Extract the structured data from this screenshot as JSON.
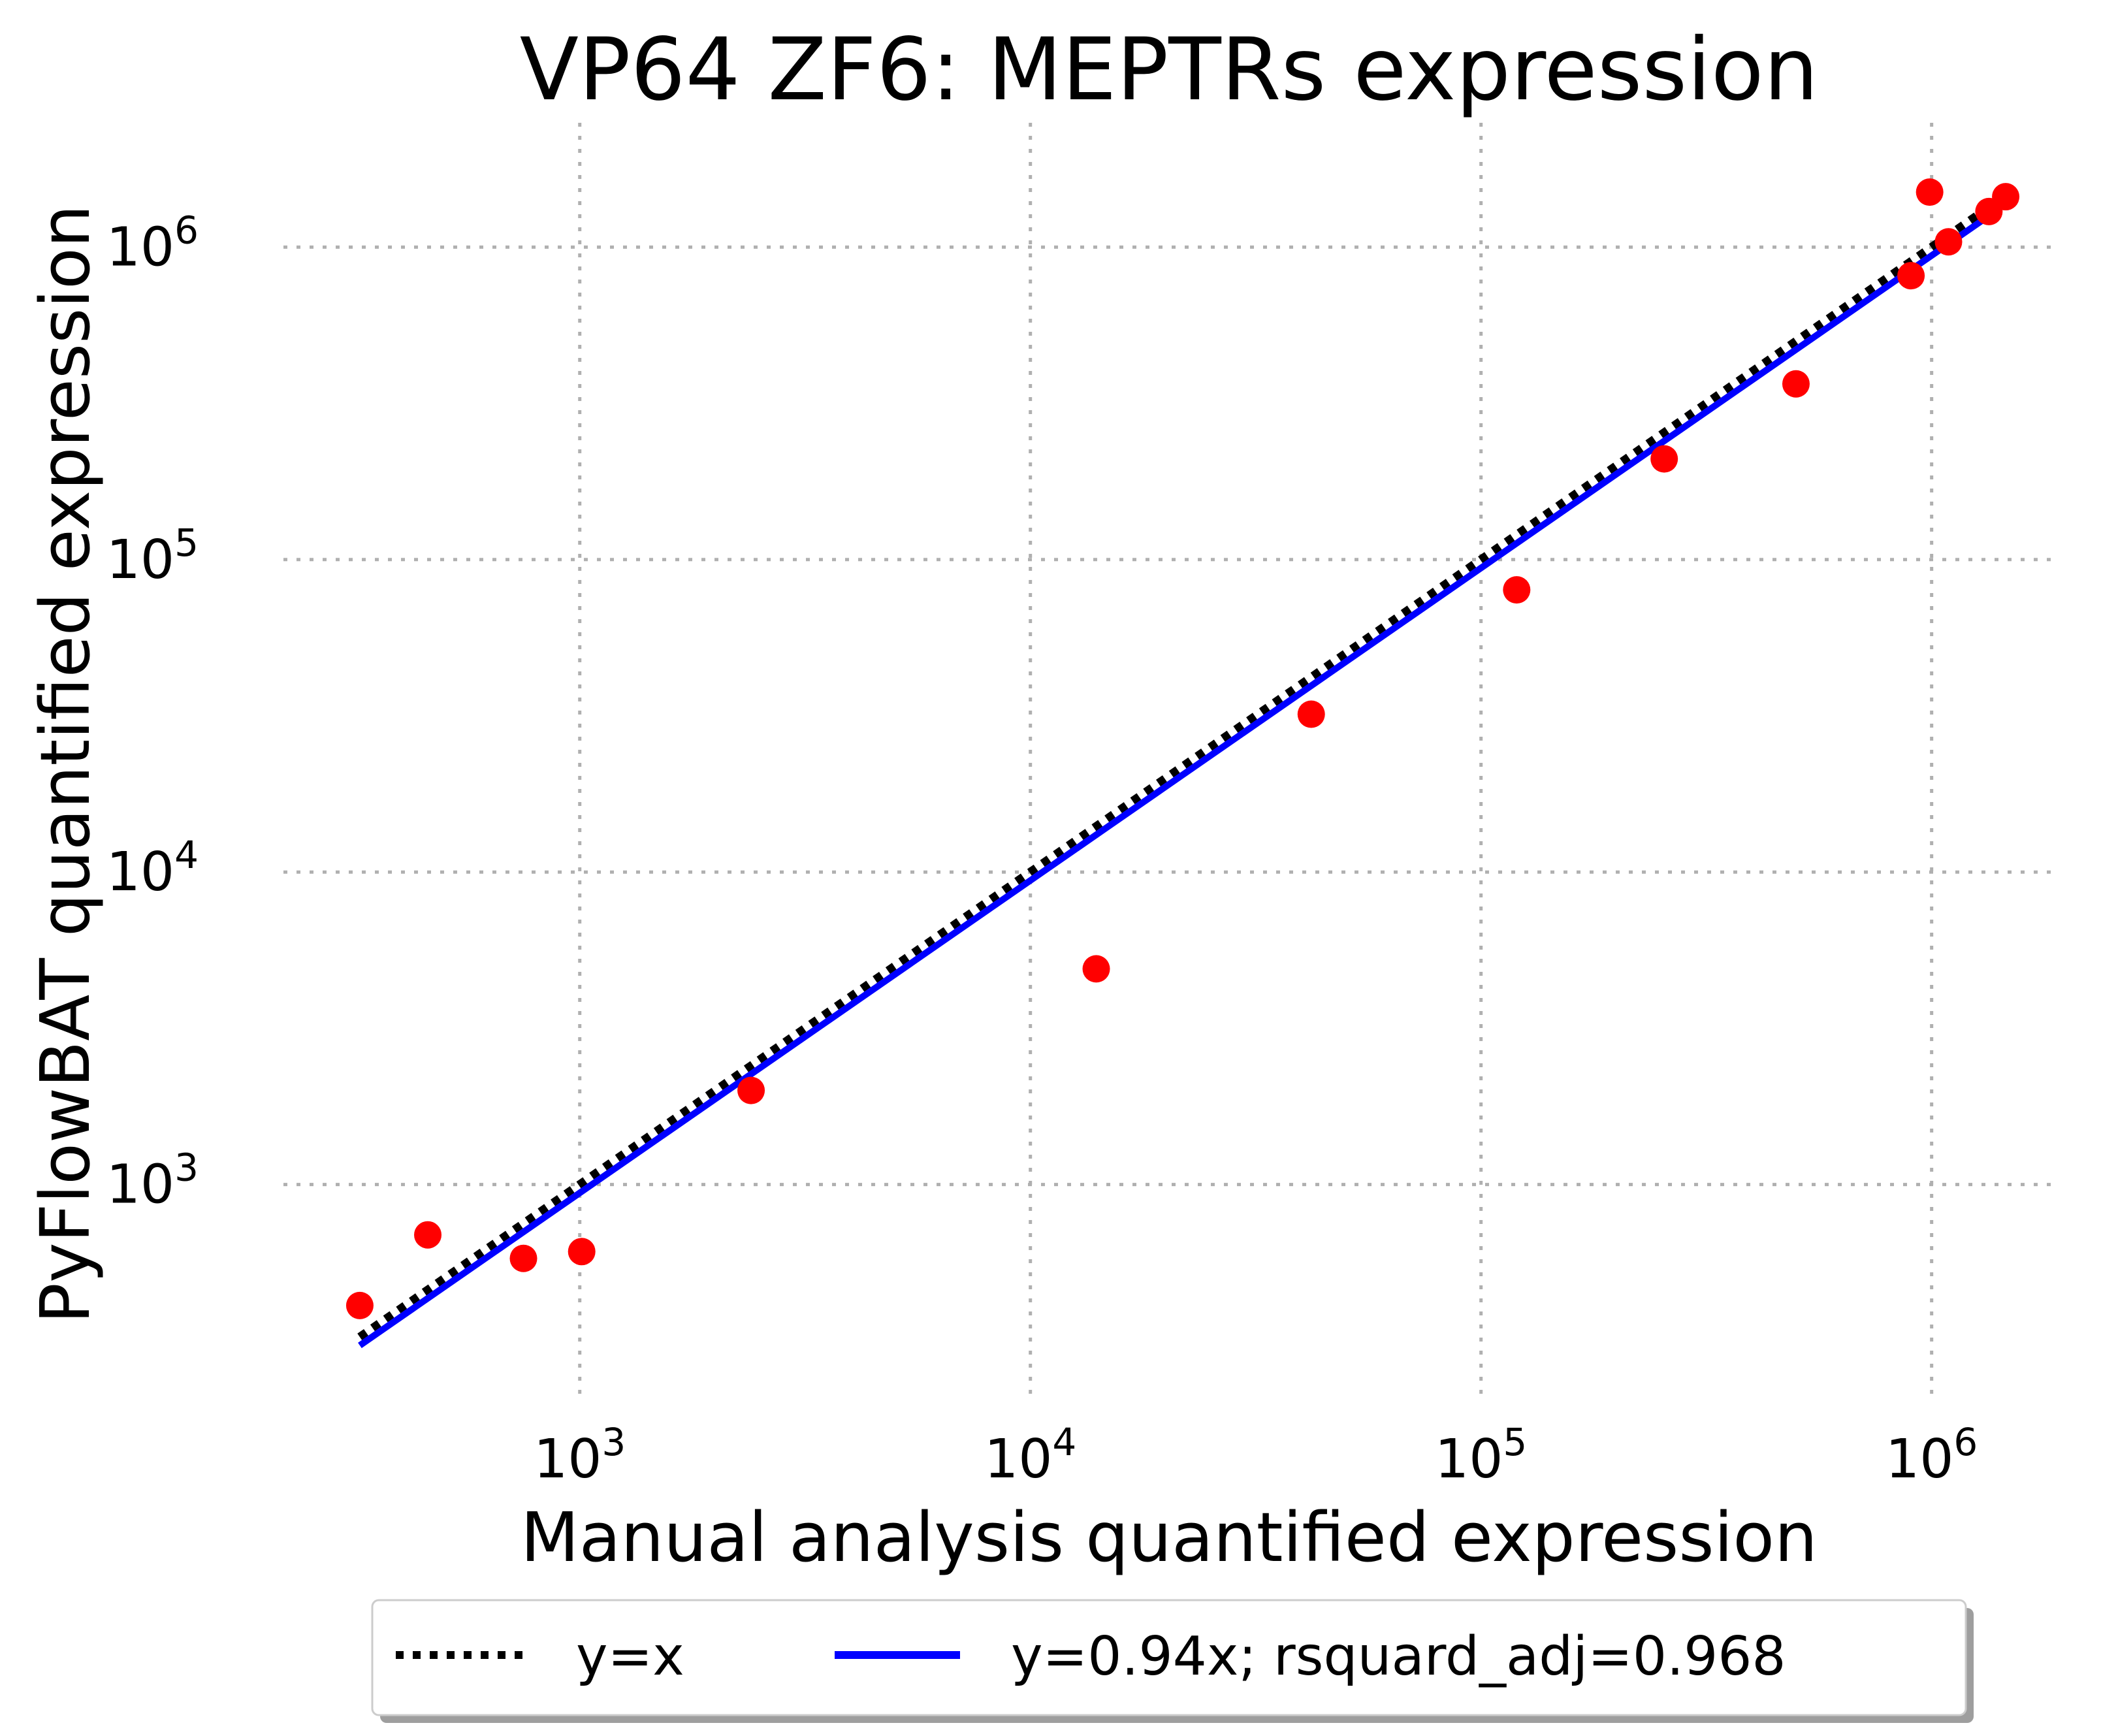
{
  "chart_data": {
    "type": "scatter",
    "title": "VP64 ZF6: MEPTRs expression",
    "xlabel": "Manual analysis quantified expression",
    "ylabel": "PyFlowBAT quantified expression",
    "xscale": "log",
    "yscale": "log",
    "xlim": [
      220,
      1900000
    ],
    "ylim": [
      200,
      2500000
    ],
    "grid": true,
    "legend_position": "bottom-center",
    "x_ticks": [
      {
        "value": 1000,
        "base": "10",
        "exp": "3"
      },
      {
        "value": 10000,
        "base": "10",
        "exp": "4"
      },
      {
        "value": 100000,
        "base": "10",
        "exp": "5"
      },
      {
        "value": 1000000,
        "base": "10",
        "exp": "6"
      }
    ],
    "y_ticks": [
      {
        "value": 1000,
        "base": "10",
        "exp": "3"
      },
      {
        "value": 10000,
        "base": "10",
        "exp": "4"
      },
      {
        "value": 100000,
        "base": "10",
        "exp": "5"
      },
      {
        "value": 1000000,
        "base": "10",
        "exp": "6"
      }
    ],
    "points": {
      "color": "#ff0000",
      "x": [
        325,
        460,
        750,
        1010,
        2400,
        14000,
        42000,
        120000,
        255000,
        500000,
        900000,
        990000,
        1090000,
        1340000,
        1460000
      ],
      "y": [
        410,
        690,
        580,
        610,
        2000,
        4900,
        32000,
        80000,
        210000,
        365000,
        810000,
        1500000,
        1040000,
        1300000,
        1450000
      ]
    },
    "lines": [
      {
        "name": "y=x",
        "slope": 1.0,
        "color": "#000000",
        "style": "dotted"
      },
      {
        "name": "y=0.94x; rsquard_adj=0.968",
        "slope": 0.94,
        "color": "#0000ff",
        "style": "solid"
      }
    ],
    "line_x_range": [
      325,
      1400000
    ]
  }
}
